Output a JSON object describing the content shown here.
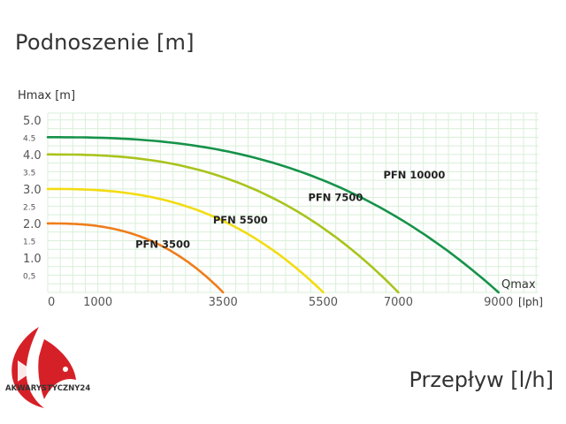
{
  "page": {
    "title": "Podnoszenie [m]",
    "footer_label": "Przepływ [l/h]",
    "brand": "AKWARYSTYCZNY24"
  },
  "colors": {
    "grid": "#d9efd9",
    "axis_text": "#555555",
    "pfn3500": "#ef7d1a",
    "pfn5500": "#f2dc12",
    "pfn7500": "#a9c31c",
    "pfn10000": "#16924a",
    "brand_red": "#d62027"
  },
  "chart_data": {
    "type": "line",
    "ylabel": "Hmax [m]",
    "xlabel": "Qmax",
    "xunit": "[lph]",
    "xlim": [
      0,
      9800
    ],
    "ylim": [
      0,
      5.2
    ],
    "x_ticks": [
      {
        "value": 0,
        "label": "0"
      },
      {
        "value": 1000,
        "label": "1000"
      },
      {
        "value": 3500,
        "label": "3500"
      },
      {
        "value": 5500,
        "label": "5500"
      },
      {
        "value": 7000,
        "label": "7000"
      },
      {
        "value": 9000,
        "label": "9000"
      }
    ],
    "y_ticks": [
      {
        "value": 5.0,
        "label": "5.0",
        "major": true
      },
      {
        "value": 4.5,
        "label": "4.5",
        "major": false
      },
      {
        "value": 4.0,
        "label": "4.0",
        "major": true
      },
      {
        "value": 3.5,
        "label": "3.5",
        "major": false
      },
      {
        "value": 3.0,
        "label": "3.0",
        "major": true
      },
      {
        "value": 2.5,
        "label": "2.5",
        "major": false
      },
      {
        "value": 2.0,
        "label": "2.0",
        "major": true
      },
      {
        "value": 1.5,
        "label": "1.5",
        "major": false
      },
      {
        "value": 1.0,
        "label": "1.0",
        "major": true
      },
      {
        "value": 0.5,
        "label": "0,5",
        "major": false
      }
    ],
    "grid": true,
    "series": [
      {
        "name": "PFN 3500",
        "hmax": 2.0,
        "qmax": 3500,
        "color_key": "pfn3500",
        "label_at": [
          1750,
          1.3
        ]
      },
      {
        "name": "PFN 5500",
        "hmax": 3.0,
        "qmax": 5500,
        "color_key": "pfn5500",
        "label_at": [
          3300,
          2.0
        ]
      },
      {
        "name": "PFN 7500",
        "hmax": 4.0,
        "qmax": 7000,
        "color_key": "pfn7500",
        "label_at": [
          5200,
          2.65
        ]
      },
      {
        "name": "PFN 10000",
        "hmax": 4.5,
        "qmax": 9000,
        "color_key": "pfn10000",
        "label_at": [
          6700,
          3.3
        ]
      }
    ]
  }
}
